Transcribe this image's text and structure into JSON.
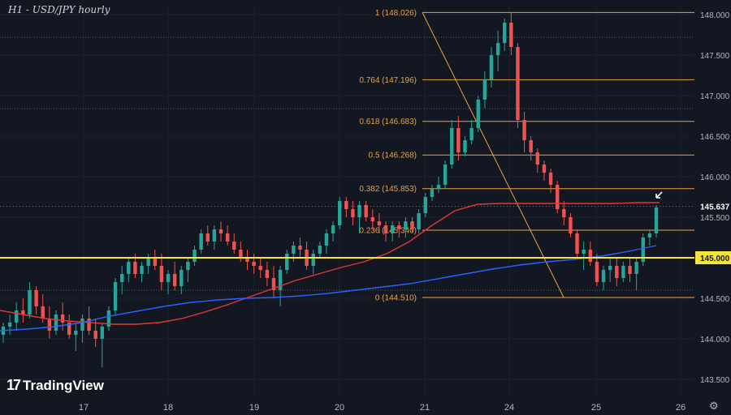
{
  "title": "H1 - USD/JPY hourly",
  "logo": {
    "mark": "17",
    "text": "TradingView"
  },
  "settings_icon": "gear-icon",
  "colors": {
    "background": "#131722",
    "up": "#26a69a",
    "down": "#ef5350",
    "fib": "#e9a43a",
    "level": "#f5e538",
    "ma_red": "#e03838",
    "ma_blue": "#2962ff",
    "axis_text": "#b2b5be"
  },
  "chart_data": {
    "type": "candlestick",
    "symbol": "USD/JPY",
    "timeframe": "hourly",
    "ylim": [
      143.3,
      148.1
    ],
    "x_ticks": [
      "17",
      "18",
      "19",
      "20",
      "21",
      "24",
      "25",
      "26"
    ],
    "y_ticks": [
      "148.000",
      "147.500",
      "147.000",
      "146.500",
      "146.000",
      "145.500",
      "145.000",
      "144.500",
      "144.000",
      "143.500"
    ],
    "fibonacci": [
      {
        "label": "1 (148.026)",
        "value": 148.026
      },
      {
        "label": "0.764 (147.196)",
        "value": 147.196
      },
      {
        "label": "0.618 (146.683)",
        "value": 146.683
      },
      {
        "label": "0.5 (146.268)",
        "value": 146.268
      },
      {
        "label": "0.382 (145.853)",
        "value": 145.853
      },
      {
        "label": "0.236 (145.340)",
        "value": 145.34
      },
      {
        "label": "0 (144.510)",
        "value": 144.51
      }
    ],
    "horizontal_level": {
      "label": "145.000",
      "value": 145.0
    },
    "current_price": {
      "label": "145.637",
      "value": 145.637
    },
    "candles": [
      [
        144.05,
        144.2,
        143.95,
        144.15
      ],
      [
        144.15,
        144.3,
        144.05,
        144.2
      ],
      [
        144.2,
        144.45,
        144.1,
        144.35
      ],
      [
        144.35,
        144.5,
        144.2,
        144.3
      ],
      [
        144.3,
        144.7,
        144.25,
        144.6
      ],
      [
        144.6,
        144.65,
        144.3,
        144.4
      ],
      [
        144.4,
        144.55,
        144.2,
        144.25
      ],
      [
        144.25,
        144.4,
        144.0,
        144.1
      ],
      [
        144.1,
        144.35,
        144.05,
        144.3
      ],
      [
        144.3,
        144.45,
        144.1,
        144.2
      ],
      [
        144.2,
        144.3,
        144.0,
        144.05
      ],
      [
        144.05,
        144.2,
        143.85,
        144.1
      ],
      [
        144.1,
        144.3,
        143.95,
        144.25
      ],
      [
        144.25,
        144.4,
        144.05,
        144.1
      ],
      [
        144.1,
        144.25,
        143.9,
        144.0
      ],
      [
        144.0,
        144.2,
        143.65,
        144.15
      ],
      [
        144.15,
        144.4,
        144.1,
        144.35
      ],
      [
        144.35,
        144.75,
        144.3,
        144.7
      ],
      [
        144.7,
        144.9,
        144.55,
        144.8
      ],
      [
        144.8,
        145.0,
        144.7,
        144.95
      ],
      [
        144.95,
        145.05,
        144.75,
        144.8
      ],
      [
        144.8,
        144.95,
        144.7,
        144.9
      ],
      [
        144.9,
        145.05,
        144.8,
        145.0
      ],
      [
        145.0,
        145.1,
        144.85,
        144.9
      ],
      [
        144.9,
        145.05,
        144.6,
        144.7
      ],
      [
        144.7,
        144.85,
        144.55,
        144.8
      ],
      [
        144.8,
        144.95,
        144.6,
        144.65
      ],
      [
        144.65,
        144.9,
        144.55,
        144.85
      ],
      [
        144.85,
        145.0,
        144.7,
        144.95
      ],
      [
        144.95,
        145.15,
        144.9,
        145.1
      ],
      [
        145.1,
        145.35,
        145.05,
        145.3
      ],
      [
        145.3,
        145.4,
        145.15,
        145.2
      ],
      [
        145.2,
        145.4,
        145.1,
        145.35
      ],
      [
        145.35,
        145.45,
        145.2,
        145.3
      ],
      [
        145.3,
        145.4,
        145.15,
        145.2
      ],
      [
        145.2,
        145.3,
        145.05,
        145.1
      ],
      [
        145.1,
        145.2,
        144.95,
        145.0
      ],
      [
        145.0,
        145.1,
        144.85,
        144.95
      ],
      [
        144.95,
        145.05,
        144.8,
        144.9
      ],
      [
        144.9,
        145.0,
        144.75,
        144.85
      ],
      [
        144.85,
        144.95,
        144.65,
        144.75
      ],
      [
        144.75,
        144.9,
        144.5,
        144.6
      ],
      [
        144.6,
        144.9,
        144.4,
        144.85
      ],
      [
        144.85,
        145.1,
        144.8,
        145.05
      ],
      [
        145.05,
        145.2,
        144.95,
        145.15
      ],
      [
        145.15,
        145.25,
        145.0,
        145.1
      ],
      [
        145.1,
        145.2,
        144.85,
        144.9
      ],
      [
        144.9,
        145.1,
        144.8,
        145.05
      ],
      [
        145.05,
        145.2,
        145.0,
        145.15
      ],
      [
        145.15,
        145.35,
        145.05,
        145.3
      ],
      [
        145.3,
        145.45,
        145.2,
        145.4
      ],
      [
        145.4,
        145.75,
        145.35,
        145.7
      ],
      [
        145.7,
        145.75,
        145.5,
        145.6
      ],
      [
        145.6,
        145.7,
        145.4,
        145.5
      ],
      [
        145.5,
        145.7,
        145.3,
        145.65
      ],
      [
        145.65,
        145.7,
        145.45,
        145.5
      ],
      [
        145.5,
        145.6,
        145.35,
        145.45
      ],
      [
        145.45,
        145.55,
        145.3,
        145.4
      ],
      [
        145.4,
        145.45,
        145.2,
        145.3
      ],
      [
        145.3,
        145.45,
        145.2,
        145.4
      ],
      [
        145.4,
        145.45,
        145.25,
        145.35
      ],
      [
        145.35,
        145.5,
        145.25,
        145.45
      ],
      [
        145.45,
        145.5,
        145.3,
        145.35
      ],
      [
        145.35,
        145.6,
        145.3,
        145.55
      ],
      [
        145.55,
        145.8,
        145.5,
        145.75
      ],
      [
        145.75,
        145.9,
        145.7,
        145.85
      ],
      [
        145.85,
        146.0,
        145.8,
        145.9
      ],
      [
        145.9,
        146.2,
        145.85,
        146.15
      ],
      [
        146.15,
        146.7,
        146.1,
        146.6
      ],
      [
        146.6,
        146.75,
        146.2,
        146.3
      ],
      [
        146.3,
        146.5,
        146.25,
        146.45
      ],
      [
        146.45,
        146.7,
        146.4,
        146.6
      ],
      [
        146.6,
        147.0,
        146.55,
        146.95
      ],
      [
        146.95,
        147.3,
        146.85,
        147.2
      ],
      [
        147.2,
        147.6,
        147.1,
        147.5
      ],
      [
        147.5,
        147.8,
        147.3,
        147.65
      ],
      [
        147.65,
        147.95,
        147.55,
        147.9
      ],
      [
        147.9,
        148.03,
        147.5,
        147.6
      ],
      [
        147.6,
        147.65,
        146.6,
        146.7
      ],
      [
        146.7,
        146.8,
        146.3,
        146.45
      ],
      [
        146.45,
        146.5,
        146.2,
        146.3
      ],
      [
        146.3,
        146.35,
        146.05,
        146.15
      ],
      [
        146.15,
        146.2,
        145.95,
        146.05
      ],
      [
        146.05,
        146.1,
        145.8,
        145.9
      ],
      [
        145.9,
        145.95,
        145.55,
        145.6
      ],
      [
        145.6,
        145.7,
        145.4,
        145.5
      ],
      [
        145.5,
        145.55,
        145.25,
        145.3
      ],
      [
        145.3,
        145.35,
        145.0,
        145.05
      ],
      [
        145.05,
        145.2,
        144.85,
        145.1
      ],
      [
        145.1,
        145.2,
        144.9,
        144.95
      ],
      [
        144.95,
        145.05,
        144.65,
        144.7
      ],
      [
        144.7,
        144.9,
        144.6,
        144.85
      ],
      [
        144.85,
        145.0,
        144.7,
        144.9
      ],
      [
        144.9,
        145.0,
        144.65,
        144.75
      ],
      [
        144.75,
        144.95,
        144.7,
        144.9
      ],
      [
        144.9,
        145.0,
        144.7,
        144.8
      ],
      [
        144.8,
        145.0,
        144.6,
        144.95
      ],
      [
        144.95,
        145.3,
        144.9,
        145.25
      ],
      [
        145.25,
        145.35,
        145.15,
        145.3
      ],
      [
        145.3,
        145.65,
        145.25,
        145.62
      ]
    ],
    "ma_red": [
      144.35,
      144.3,
      144.25,
      144.22,
      144.2,
      144.18,
      144.18,
      144.2,
      144.25,
      144.33,
      144.42,
      144.52,
      144.62,
      144.72,
      144.8,
      144.88,
      144.95,
      145.05,
      145.2,
      145.4,
      145.58,
      145.66,
      145.67,
      145.67,
      145.67,
      145.67,
      145.67,
      145.67,
      145.68,
      145.68
    ],
    "ma_blue": [
      144.1,
      144.12,
      144.15,
      144.2,
      144.28,
      144.34,
      144.4,
      144.45,
      144.48,
      144.5,
      144.51,
      144.53,
      144.56,
      144.6,
      144.64,
      144.68,
      144.74,
      144.8,
      144.86,
      144.91,
      144.95,
      144.98,
      145.02,
      145.08,
      145.15
    ]
  }
}
